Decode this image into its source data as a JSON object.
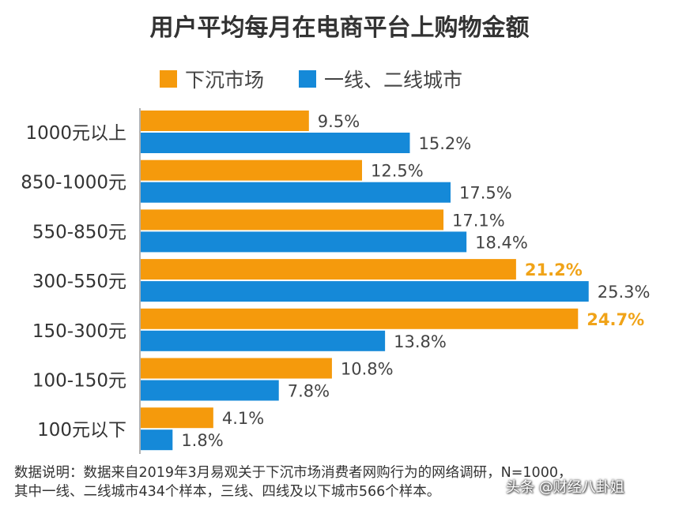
{
  "title": "用户平均每月在电商平台上购物金额",
  "colors": {
    "series1": "#F59A0C",
    "series2": "#1589D8",
    "highlight_label": "#F0A318"
  },
  "chart_data": {
    "type": "bar",
    "orientation": "horizontal",
    "categories": [
      "1000元以上",
      "850-1000元",
      "550-850元",
      "300-550元",
      "150-300元",
      "100-150元",
      "100元以下"
    ],
    "series": [
      {
        "name": "下沉市场",
        "values": [
          9.5,
          12.5,
          17.1,
          21.2,
          24.7,
          10.8,
          4.1
        ],
        "labels": [
          "9.5%",
          "12.5%",
          "17.1%",
          "21.2%",
          "24.7%",
          "10.8%",
          "4.1%"
        ],
        "highlight": [
          false,
          false,
          false,
          true,
          true,
          false,
          false
        ]
      },
      {
        "name": "一线、二线城市",
        "values": [
          15.2,
          17.5,
          18.4,
          25.3,
          13.8,
          7.8,
          1.8
        ],
        "labels": [
          "15.2%",
          "17.5%",
          "18.4%",
          "25.3%",
          "13.8%",
          "7.8%",
          "1.8%"
        ]
      }
    ],
    "xlim": [
      0,
      25.3
    ],
    "legend_position": "top",
    "grid": false
  },
  "footnote": {
    "line1": "数据说明：数据来自2019年3月易观关于下沉市场消费者网购行为的网络调研，N=1000，",
    "line2": "其中一线、二线城市434个样本，三线、四线及以下城市566个样本。"
  },
  "watermark": "头条 @财经八卦姐"
}
